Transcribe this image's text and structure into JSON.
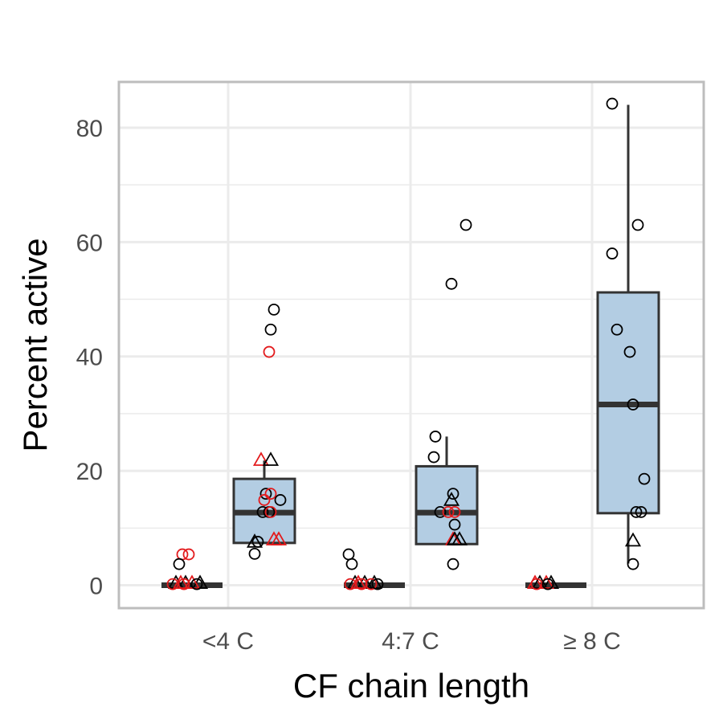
{
  "chart_data": {
    "type": "box",
    "xlabel": "CF chain length",
    "ylabel": "Percent active",
    "categories": [
      "<4 C",
      "4:7  C",
      "≥ 8 C"
    ],
    "ylim": [
      -4,
      88
    ],
    "yticks": [
      0,
      20,
      40,
      60,
      80
    ],
    "grid": true,
    "colors": {
      "box_fill": "#b3cde3",
      "box_line": "#333333",
      "black_points": "#000000",
      "red_points": "#e31a1c",
      "grid": "#ebebeb",
      "panel_border": "#bdbdbd"
    },
    "groups": [
      {
        "category": "<4 C",
        "subgroup": 0,
        "box": {
          "q1": 0,
          "median": 0,
          "q3": 0,
          "whisker_low": 0,
          "whisker_high": 0
        },
        "points": [
          {
            "y": 5.4,
            "shape": "circle",
            "color": "red",
            "jitter": -0.06
          },
          {
            "y": 5.4,
            "shape": "circle",
            "color": "red",
            "jitter": -0.02
          },
          {
            "y": 3.7,
            "shape": "circle",
            "color": "black",
            "jitter": -0.08
          },
          {
            "y": 0.4,
            "shape": "triangle",
            "color": "black",
            "jitter": -0.1
          },
          {
            "y": 0.4,
            "shape": "triangle",
            "color": "black",
            "jitter": -0.04
          },
          {
            "y": 0.4,
            "shape": "triangle",
            "color": "black",
            "jitter": 0.05
          },
          {
            "y": 0.4,
            "shape": "triangle",
            "color": "red",
            "jitter": -0.07
          },
          {
            "y": 0.4,
            "shape": "triangle",
            "color": "red",
            "jitter": 0.0
          },
          {
            "y": 0.2,
            "shape": "circle",
            "color": "red",
            "jitter": -0.12
          },
          {
            "y": 0.2,
            "shape": "circle",
            "color": "red",
            "jitter": -0.05
          },
          {
            "y": 0.2,
            "shape": "circle",
            "color": "black",
            "jitter": 0.03
          }
        ]
      },
      {
        "category": "<4 C",
        "subgroup": 1,
        "box": {
          "q1": 7.4,
          "median": 12.7,
          "q3": 18.6,
          "whisker_low": 7.4,
          "whisker_high": 21.8
        },
        "points": [
          {
            "y": 48.2,
            "shape": "circle",
            "color": "black",
            "jitter": 0.06
          },
          {
            "y": 44.7,
            "shape": "circle",
            "color": "black",
            "jitter": 0.04
          },
          {
            "y": 40.8,
            "shape": "circle",
            "color": "red",
            "jitter": 0.03
          },
          {
            "y": 21.9,
            "shape": "triangle",
            "color": "red",
            "jitter": -0.02
          },
          {
            "y": 21.9,
            "shape": "triangle",
            "color": "black",
            "jitter": 0.04
          },
          {
            "y": 16.0,
            "shape": "circle",
            "color": "black",
            "jitter": 0.01
          },
          {
            "y": 16.0,
            "shape": "circle",
            "color": "red",
            "jitter": 0.04
          },
          {
            "y": 14.9,
            "shape": "circle",
            "color": "red",
            "jitter": 0.0
          },
          {
            "y": 14.9,
            "shape": "circle",
            "color": "black",
            "jitter": 0.1
          },
          {
            "y": 12.8,
            "shape": "circle",
            "color": "black",
            "jitter": -0.01
          },
          {
            "y": 12.8,
            "shape": "circle",
            "color": "black",
            "jitter": 0.03
          },
          {
            "y": 12.8,
            "shape": "circle",
            "color": "red",
            "jitter": 0.04
          },
          {
            "y": 8.0,
            "shape": "triangle",
            "color": "red",
            "jitter": 0.06
          },
          {
            "y": 8.0,
            "shape": "triangle",
            "color": "red",
            "jitter": 0.09
          },
          {
            "y": 7.6,
            "shape": "triangle",
            "color": "black",
            "jitter": -0.06
          },
          {
            "y": 7.6,
            "shape": "circle",
            "color": "black",
            "jitter": -0.04
          },
          {
            "y": 5.5,
            "shape": "circle",
            "color": "black",
            "jitter": -0.06
          }
        ]
      },
      {
        "category": "4:7  C",
        "subgroup": 0,
        "box": {
          "q1": 0,
          "median": 0,
          "q3": 0,
          "whisker_low": 0,
          "whisker_high": 0
        },
        "points": [
          {
            "y": 5.4,
            "shape": "circle",
            "color": "black",
            "jitter": -0.16
          },
          {
            "y": 3.7,
            "shape": "circle",
            "color": "black",
            "jitter": -0.14
          },
          {
            "y": 0.4,
            "shape": "triangle",
            "color": "black",
            "jitter": -0.12
          },
          {
            "y": 0.4,
            "shape": "triangle",
            "color": "black",
            "jitter": -0.06
          },
          {
            "y": 0.4,
            "shape": "triangle",
            "color": "black",
            "jitter": 0.0
          },
          {
            "y": 0.4,
            "shape": "triangle",
            "color": "red",
            "jitter": -0.1
          },
          {
            "y": 0.2,
            "shape": "circle",
            "color": "red",
            "jitter": -0.15
          },
          {
            "y": 0.2,
            "shape": "circle",
            "color": "red",
            "jitter": -0.08
          },
          {
            "y": 0.2,
            "shape": "circle",
            "color": "red",
            "jitter": -0.02
          },
          {
            "y": 0.2,
            "shape": "circle",
            "color": "black",
            "jitter": 0.02
          }
        ]
      },
      {
        "category": "4:7  C",
        "subgroup": 1,
        "box": {
          "q1": 7.2,
          "median": 12.7,
          "q3": 20.8,
          "whisker_low": 7.2,
          "whisker_high": 26.0
        },
        "points": [
          {
            "y": 63.0,
            "shape": "circle",
            "color": "black",
            "jitter": 0.12
          },
          {
            "y": 52.7,
            "shape": "circle",
            "color": "black",
            "jitter": 0.03
          },
          {
            "y": 26.0,
            "shape": "circle",
            "color": "black",
            "jitter": -0.07
          },
          {
            "y": 22.4,
            "shape": "circle",
            "color": "black",
            "jitter": -0.08
          },
          {
            "y": 16.0,
            "shape": "circle",
            "color": "black",
            "jitter": 0.04
          },
          {
            "y": 14.9,
            "shape": "triangle",
            "color": "black",
            "jitter": 0.03
          },
          {
            "y": 12.8,
            "shape": "circle",
            "color": "black",
            "jitter": -0.04
          },
          {
            "y": 12.8,
            "shape": "circle",
            "color": "red",
            "jitter": 0.01
          },
          {
            "y": 12.8,
            "shape": "circle",
            "color": "red",
            "jitter": 0.05
          },
          {
            "y": 10.6,
            "shape": "circle",
            "color": "black",
            "jitter": 0.05
          },
          {
            "y": 8.0,
            "shape": "triangle",
            "color": "red",
            "jitter": 0.04
          },
          {
            "y": 8.0,
            "shape": "triangle",
            "color": "black",
            "jitter": 0.08
          },
          {
            "y": 8.0,
            "shape": "triangle",
            "color": "black",
            "jitter": 0.05
          },
          {
            "y": 3.7,
            "shape": "circle",
            "color": "black",
            "jitter": 0.04
          }
        ]
      },
      {
        "category": "≥ 8 C",
        "subgroup": 0,
        "box": {
          "q1": 0,
          "median": 0,
          "q3": 0,
          "whisker_low": 0,
          "whisker_high": 0
        },
        "points": [
          {
            "y": 0.4,
            "shape": "triangle",
            "color": "red",
            "jitter": -0.13
          },
          {
            "y": 0.4,
            "shape": "triangle",
            "color": "black",
            "jitter": -0.1
          },
          {
            "y": 0.4,
            "shape": "triangle",
            "color": "black",
            "jitter": -0.03
          },
          {
            "y": 0.4,
            "shape": "triangle",
            "color": "red",
            "jitter": -0.06
          },
          {
            "y": 0.2,
            "shape": "circle",
            "color": "red",
            "jitter": -0.12
          },
          {
            "y": 0.2,
            "shape": "circle",
            "color": "black",
            "jitter": -0.05
          }
        ]
      },
      {
        "category": "≥ 8 C",
        "subgroup": 1,
        "box": {
          "q1": 12.6,
          "median": 31.6,
          "q3": 51.2,
          "whisker_low": 3.8,
          "whisker_high": 84.0
        },
        "points": [
          {
            "y": 84.2,
            "shape": "circle",
            "color": "black",
            "jitter": -0.1
          },
          {
            "y": 63.0,
            "shape": "circle",
            "color": "black",
            "jitter": 0.06
          },
          {
            "y": 58.0,
            "shape": "circle",
            "color": "black",
            "jitter": -0.1
          },
          {
            "y": 44.7,
            "shape": "circle",
            "color": "black",
            "jitter": -0.07
          },
          {
            "y": 40.8,
            "shape": "circle",
            "color": "black",
            "jitter": 0.01
          },
          {
            "y": 31.6,
            "shape": "circle",
            "color": "black",
            "jitter": 0.03
          },
          {
            "y": 18.6,
            "shape": "circle",
            "color": "black",
            "jitter": 0.1
          },
          {
            "y": 12.8,
            "shape": "circle",
            "color": "black",
            "jitter": 0.05
          },
          {
            "y": 12.8,
            "shape": "circle",
            "color": "black",
            "jitter": 0.08
          },
          {
            "y": 7.8,
            "shape": "triangle",
            "color": "black",
            "jitter": 0.03
          },
          {
            "y": 3.7,
            "shape": "circle",
            "color": "black",
            "jitter": 0.03
          }
        ]
      }
    ]
  }
}
